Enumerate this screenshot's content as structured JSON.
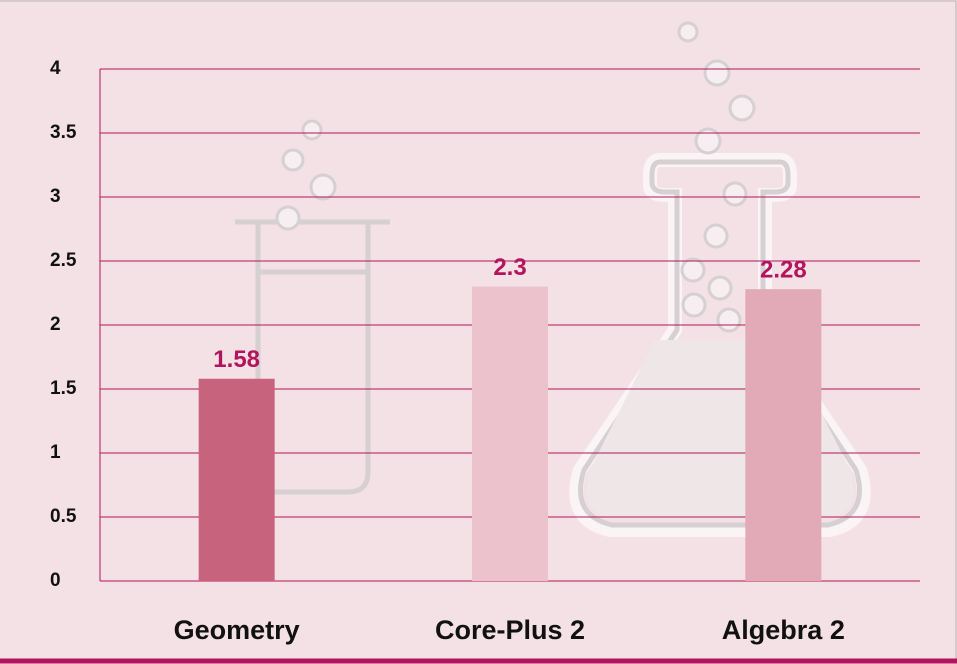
{
  "chart_data": {
    "type": "bar",
    "categories": [
      "Geometry",
      "Core-Plus 2",
      "Algebra 2"
    ],
    "values": [
      1.58,
      2.3,
      2.28
    ],
    "colors": [
      "#c8637d",
      "#ecc3cc",
      "#e2aab6"
    ],
    "ylim": [
      0,
      4
    ],
    "yticks": [
      0,
      0.5,
      1,
      1.5,
      2,
      2.5,
      3,
      3.5,
      4
    ],
    "grid": true
  }
}
